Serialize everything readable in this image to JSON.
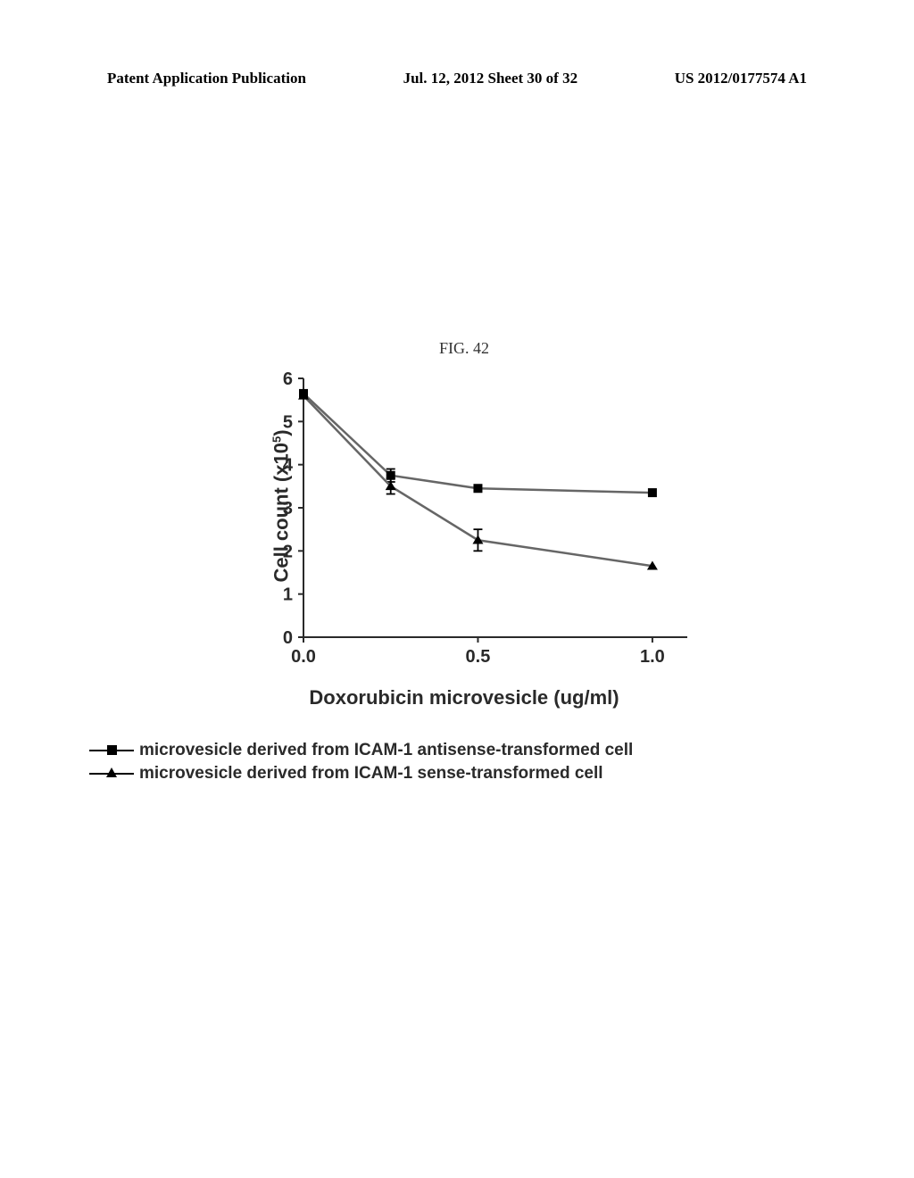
{
  "header": {
    "left": "Patent Application Publication",
    "center": "Jul. 12, 2012  Sheet 30 of 32",
    "right": "US 2012/0177574 A1"
  },
  "figure": {
    "title": "FIG. 42",
    "xlabel": "Doxorubicin microvesicle (ug/ml)",
    "ylabel_prefix": "Cell count (x10",
    "ylabel_exponent": "5",
    "ylabel_suffix": ")",
    "chart": {
      "type": "line",
      "xlim": [
        0.0,
        1.1
      ],
      "ylim": [
        0,
        6
      ],
      "xticks": [
        0.0,
        0.5,
        1.0
      ],
      "xtick_labels": [
        "0.0",
        "0.5",
        "1.0"
      ],
      "yticks": [
        0,
        1,
        2,
        3,
        4,
        5,
        6
      ],
      "ytick_labels": [
        "0",
        "1",
        "2",
        "3",
        "4",
        "5",
        "6"
      ],
      "background_color": "#ffffff",
      "axis_color": "#2a2a2a",
      "axis_width": 2,
      "tick_fontsize": 20,
      "series": [
        {
          "name": "antisense",
          "marker": "square",
          "marker_size": 10,
          "line_color": "#666666",
          "line_width": 2.5,
          "marker_color": "#000000",
          "x": [
            0.0,
            0.25,
            0.5,
            1.0
          ],
          "y": [
            5.65,
            3.75,
            3.45,
            3.35
          ],
          "yerr": [
            0,
            0.15,
            0,
            0
          ]
        },
        {
          "name": "sense",
          "marker": "triangle",
          "marker_size": 10,
          "line_color": "#666666",
          "line_width": 2.5,
          "marker_color": "#000000",
          "x": [
            0.0,
            0.25,
            0.5,
            1.0
          ],
          "y": [
            5.6,
            3.5,
            2.25,
            1.65
          ],
          "yerr": [
            0,
            0.18,
            0.25,
            0
          ]
        }
      ]
    }
  },
  "legend": {
    "items": [
      {
        "marker": "square",
        "label": "microvesicle derived from ICAM-1 antisense-transformed cell"
      },
      {
        "marker": "triangle",
        "label": "microvesicle derived from ICAM-1 sense-transformed cell"
      }
    ]
  }
}
